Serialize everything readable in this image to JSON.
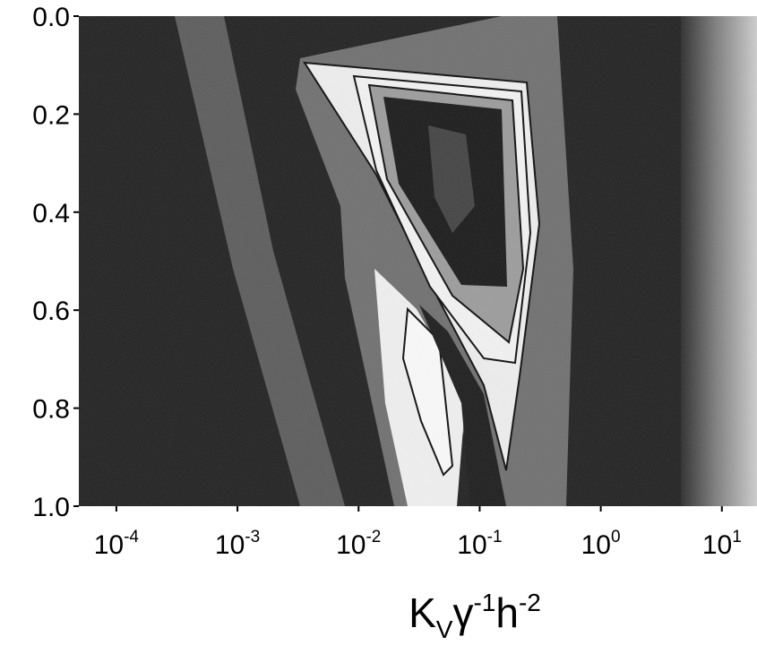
{
  "chart_data": {
    "type": "contour",
    "xscale": "log",
    "xlim": [
      4.9e-05,
      19.5
    ],
    "xticks": [
      {
        "value": 0.0001,
        "label": "10",
        "exponent": "-4"
      },
      {
        "value": 0.001,
        "label": "10",
        "exponent": "-3"
      },
      {
        "value": 0.01,
        "label": "10",
        "exponent": "-2"
      },
      {
        "value": 0.1,
        "label": "10",
        "exponent": "-1"
      },
      {
        "value": 1,
        "label": "10",
        "exponent": "0"
      },
      {
        "value": 10,
        "label": "10",
        "exponent": "1"
      }
    ],
    "ylim": [
      0,
      1
    ],
    "y_reversed": true,
    "yticks": [
      {
        "value": 0,
        "label": "0.0"
      },
      0.2,
      0.4,
      0.6,
      0.8,
      {
        "value": 1,
        "label": "1.0"
      }
    ],
    "xlabel_parts": [
      {
        "text": "K"
      },
      {
        "text": "V",
        "sub": true
      },
      {
        "text": "γ"
      },
      {
        "text": "-1",
        "sup": true
      },
      {
        "text": "h"
      },
      {
        "text": "-2",
        "sup": true
      }
    ]
  }
}
